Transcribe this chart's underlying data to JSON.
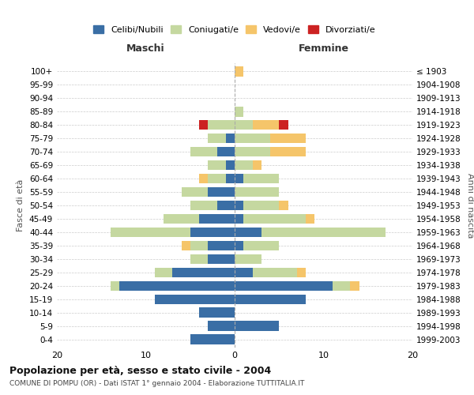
{
  "age_groups": [
    "0-4",
    "5-9",
    "10-14",
    "15-19",
    "20-24",
    "25-29",
    "30-34",
    "35-39",
    "40-44",
    "45-49",
    "50-54",
    "55-59",
    "60-64",
    "65-69",
    "70-74",
    "75-79",
    "80-84",
    "85-89",
    "90-94",
    "95-99",
    "100+"
  ],
  "birth_years": [
    "1999-2003",
    "1994-1998",
    "1989-1993",
    "1984-1988",
    "1979-1983",
    "1974-1978",
    "1969-1973",
    "1964-1968",
    "1959-1963",
    "1954-1958",
    "1949-1953",
    "1944-1948",
    "1939-1943",
    "1934-1938",
    "1929-1933",
    "1924-1928",
    "1919-1923",
    "1914-1918",
    "1909-1913",
    "1904-1908",
    "≤ 1903"
  ],
  "colors": {
    "celibi": "#3A6EA5",
    "coniugati": "#C5D8A0",
    "vedovi": "#F5C56A",
    "divorziati": "#CC2222"
  },
  "maschi": {
    "celibi": [
      5,
      3,
      4,
      9,
      13,
      7,
      3,
      3,
      5,
      4,
      2,
      3,
      1,
      1,
      2,
      1,
      0,
      0,
      0,
      0,
      0
    ],
    "coniugati": [
      0,
      0,
      0,
      0,
      1,
      2,
      2,
      2,
      9,
      4,
      3,
      3,
      2,
      2,
      3,
      2,
      3,
      0,
      0,
      0,
      0
    ],
    "vedovi": [
      0,
      0,
      0,
      0,
      0,
      0,
      0,
      1,
      0,
      0,
      0,
      0,
      1,
      0,
      0,
      0,
      0,
      0,
      0,
      0,
      0
    ],
    "divorziati": [
      0,
      0,
      0,
      0,
      0,
      0,
      0,
      0,
      0,
      0,
      0,
      0,
      0,
      0,
      0,
      0,
      1,
      0,
      0,
      0,
      0
    ]
  },
  "femmine": {
    "celibi": [
      0,
      5,
      0,
      8,
      11,
      2,
      0,
      1,
      3,
      1,
      1,
      0,
      1,
      0,
      0,
      0,
      0,
      0,
      0,
      0,
      0
    ],
    "coniugati": [
      0,
      0,
      0,
      0,
      2,
      5,
      3,
      4,
      14,
      7,
      4,
      5,
      4,
      2,
      4,
      4,
      2,
      1,
      0,
      0,
      0
    ],
    "vedovi": [
      0,
      0,
      0,
      0,
      1,
      1,
      0,
      0,
      0,
      1,
      1,
      0,
      0,
      1,
      4,
      4,
      3,
      0,
      0,
      0,
      1
    ],
    "divorziati": [
      0,
      0,
      0,
      0,
      0,
      0,
      0,
      0,
      0,
      0,
      0,
      0,
      0,
      0,
      0,
      0,
      1,
      0,
      0,
      0,
      0
    ]
  },
  "title": "Popolazione per età, sesso e stato civile - 2004",
  "subtitle": "COMUNE DI POMPU (OR) - Dati ISTAT 1° gennaio 2004 - Elaborazione TUTTITALIA.IT",
  "xlabel_left": "Maschi",
  "xlabel_right": "Femmine",
  "ylabel_left": "Fasce di età",
  "ylabel_right": "Anni di nascita",
  "xlim": 20,
  "legend_labels": [
    "Celibi/Nubili",
    "Coniugati/e",
    "Vedovi/e",
    "Divorziati/e"
  ],
  "background_color": "#ffffff",
  "grid_color": "#cccccc"
}
